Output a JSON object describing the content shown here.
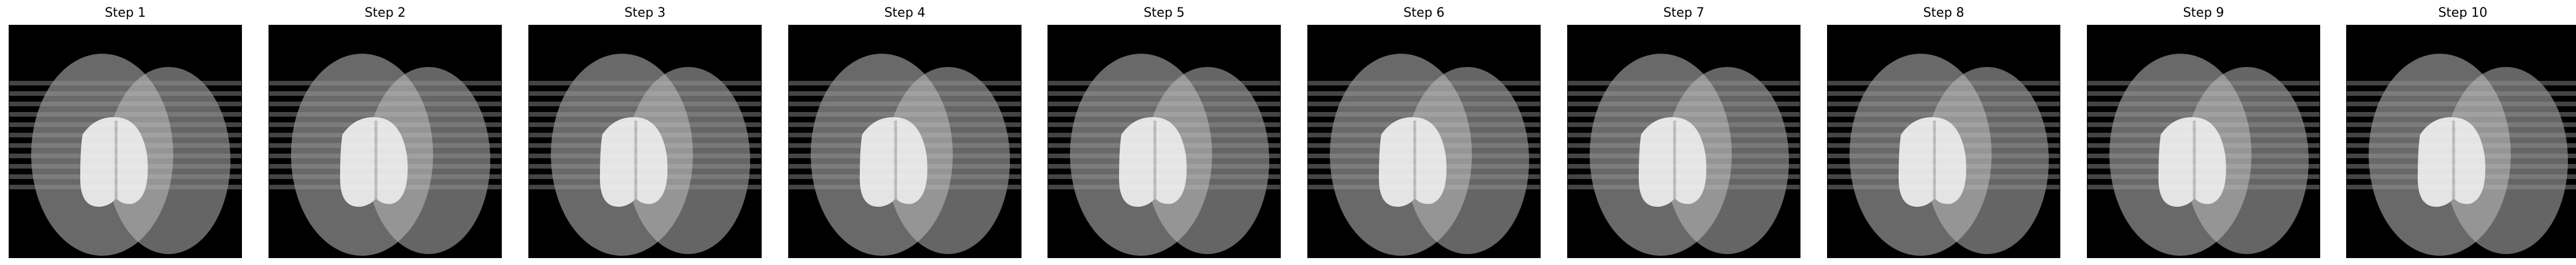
{
  "panels": [
    {
      "title": "Step 1"
    },
    {
      "title": "Step 2"
    },
    {
      "title": "Step 3"
    },
    {
      "title": "Step 4"
    },
    {
      "title": "Step 5"
    },
    {
      "title": "Step 6"
    },
    {
      "title": "Step 7"
    },
    {
      "title": "Step 8"
    },
    {
      "title": "Step 9"
    },
    {
      "title": "Step 10"
    }
  ],
  "colors": {
    "background": "#000000",
    "stripe": "#333333",
    "left_ellipse": "#6f6f6f",
    "right_ellipse": "#6a6a6a",
    "overlap": "#959595",
    "bright_region": "#e4e4e4",
    "bright_divider": "#b8b8b8",
    "axes_border": "#000000",
    "title_text": "#000000"
  }
}
